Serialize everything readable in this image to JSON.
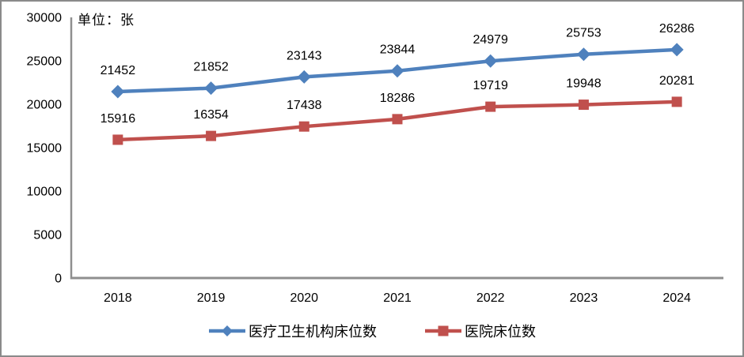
{
  "chart_data": {
    "type": "line",
    "title": "",
    "unit_label": "单位：张",
    "categories": [
      "2018",
      "2019",
      "2020",
      "2021",
      "2022",
      "2023",
      "2024"
    ],
    "series": [
      {
        "name": "医疗卫生机构床位数",
        "color": "#4F81BD",
        "marker": "diamond",
        "values": [
          21452,
          21852,
          23143,
          23844,
          24979,
          25753,
          26286
        ]
      },
      {
        "name": "医院床位数",
        "color": "#C0504D",
        "marker": "square",
        "values": [
          15916,
          16354,
          17438,
          18286,
          19719,
          19948,
          20281
        ]
      }
    ],
    "xlabel": "",
    "ylabel": "",
    "ylim": [
      0,
      30000
    ],
    "ytick_step": 5000,
    "yticks": [
      "0",
      "5000",
      "10000",
      "15000",
      "20000",
      "25000",
      "30000"
    ],
    "grid": false,
    "legend_position": "bottom",
    "axis_color": "#8f8f8f",
    "label_color": "#000000"
  }
}
